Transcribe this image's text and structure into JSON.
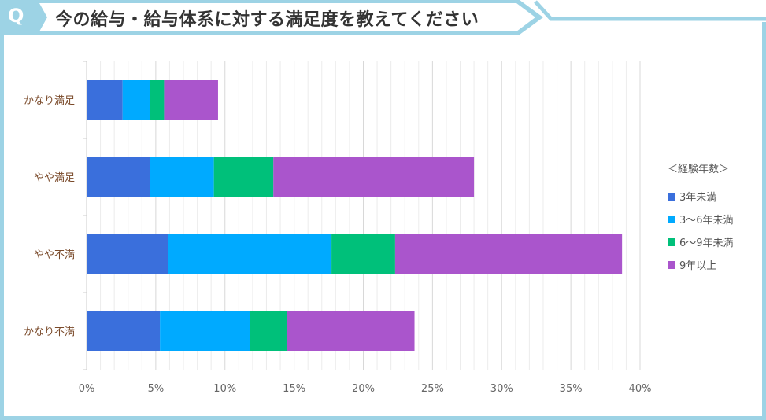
{
  "header": {
    "q": "Q",
    "title": "今の給与・給与体系に対する満足度を教えてください"
  },
  "colors": {
    "frame": "#9dd3e5",
    "series": [
      "#3a6fdc",
      "#00aaff",
      "#00c07a",
      "#aa55cc"
    ]
  },
  "chart_data": {
    "type": "bar",
    "orientation": "horizontal",
    "stacked": true,
    "categories": [
      "かなり満足",
      "やや満足",
      "やや不満",
      "かなり不満"
    ],
    "series": [
      {
        "name": "3年未満",
        "values": [
          2.6,
          4.6,
          5.9,
          5.3
        ]
      },
      {
        "name": "3〜6年未満",
        "values": [
          2.0,
          4.6,
          11.8,
          6.5
        ]
      },
      {
        "name": "6〜9年未満",
        "values": [
          1.0,
          4.3,
          4.6,
          2.7
        ]
      },
      {
        "name": "9年以上",
        "values": [
          3.9,
          14.5,
          16.4,
          9.2
        ]
      }
    ],
    "xlim": [
      0,
      40
    ],
    "xticks": [
      "0%",
      "5%",
      "10%",
      "15%",
      "20%",
      "25%",
      "30%",
      "35%",
      "40%"
    ],
    "grid": true,
    "legend": {
      "title": "＜経験年数＞",
      "position": "right"
    }
  }
}
